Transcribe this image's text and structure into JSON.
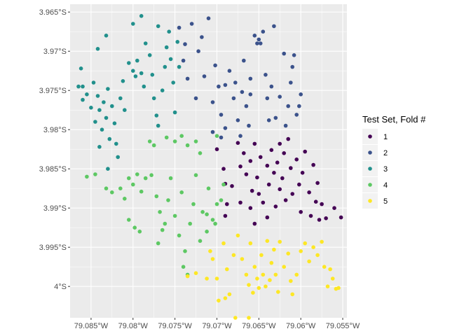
{
  "chart_data": {
    "type": "scatter",
    "title": "",
    "xlabel": "",
    "ylabel": "",
    "xlim": [
      -79.0875,
      -79.0545
    ],
    "ylim": [
      -4.004,
      -3.964
    ],
    "x_ticks": [
      {
        "value": -79.085,
        "label": "79.085°W"
      },
      {
        "value": -79.08,
        "label": "79.08°W"
      },
      {
        "value": -79.075,
        "label": "79.075°W"
      },
      {
        "value": -79.07,
        "label": "79.07°W"
      },
      {
        "value": -79.065,
        "label": "79.065°W"
      },
      {
        "value": -79.06,
        "label": "79.06°W"
      },
      {
        "value": -79.055,
        "label": "79.055°W"
      }
    ],
    "y_ticks": [
      {
        "value": -3.965,
        "label": "3.965°S"
      },
      {
        "value": -3.97,
        "label": "3.97°S"
      },
      {
        "value": -3.975,
        "label": "3.975°S"
      },
      {
        "value": -3.98,
        "label": "3.98°S"
      },
      {
        "value": -3.985,
        "label": "3.985°S"
      },
      {
        "value": -3.99,
        "label": "3.99°S"
      },
      {
        "value": -3.995,
        "label": "3.995°S"
      },
      {
        "value": -4.0,
        "label": "4°S"
      }
    ],
    "grid": true,
    "legend": {
      "title": "Test Set, Fold #",
      "placement": "right"
    },
    "series": [
      {
        "name": "1",
        "color": "#440154",
        "points": [
          [
            -79.07,
            -3.9825
          ],
          [
            -79.0692,
            -3.985
          ],
          [
            -79.069,
            -3.9869
          ],
          [
            -79.0688,
            -3.9895
          ],
          [
            -79.0682,
            -3.9872
          ],
          [
            -79.0675,
            -3.9817
          ],
          [
            -79.0672,
            -3.9847
          ],
          [
            -79.0668,
            -3.983
          ],
          [
            -79.0665,
            -3.9857
          ],
          [
            -79.066,
            -3.984
          ],
          [
            -79.0658,
            -3.9878
          ],
          [
            -79.0655,
            -3.9818
          ],
          [
            -79.0652,
            -3.9861
          ],
          [
            -79.065,
            -3.9882
          ],
          [
            -79.0648,
            -3.9835
          ],
          [
            -79.0645,
            -3.9893
          ],
          [
            -79.064,
            -3.9846
          ],
          [
            -79.0638,
            -3.987
          ],
          [
            -79.0635,
            -3.9826
          ],
          [
            -79.0632,
            -3.9855
          ],
          [
            -79.063,
            -3.9898
          ],
          [
            -79.0628,
            -3.9842
          ],
          [
            -79.0625,
            -3.9876
          ],
          [
            -79.0622,
            -3.9862
          ],
          [
            -79.062,
            -3.983
          ],
          [
            -79.0618,
            -3.989
          ],
          [
            -79.0615,
            -3.9812
          ],
          [
            -79.0612,
            -3.9849
          ],
          [
            -79.061,
            -3.9882
          ],
          [
            -79.0605,
            -3.9838
          ],
          [
            -79.0602,
            -3.987
          ],
          [
            -79.06,
            -3.9905
          ],
          [
            -79.0598,
            -3.9855
          ],
          [
            -79.0595,
            -3.9828
          ],
          [
            -79.059,
            -3.988
          ],
          [
            -79.0588,
            -3.991
          ],
          [
            -79.0585,
            -3.9845
          ],
          [
            -79.0582,
            -3.9892
          ],
          [
            -79.058,
            -3.9868
          ],
          [
            -79.0578,
            -3.9915
          ],
          [
            -79.0575,
            -3.9895
          ],
          [
            -79.057,
            -3.9913
          ],
          [
            -79.056,
            -3.99
          ],
          [
            -79.0552,
            -3.9912
          ],
          [
            -79.066,
            -3.99
          ],
          [
            -79.0672,
            -3.9893
          ],
          [
            -79.069,
            -3.991
          ],
          [
            -79.0655,
            -3.992
          ],
          [
            -79.064,
            -3.9912
          ],
          [
            -79.0625,
            -3.9818
          ]
        ]
      },
      {
        "name": "2",
        "color": "#3B528B",
        "points": [
          [
            -79.0745,
            -3.967
          ],
          [
            -79.0738,
            -3.9691
          ],
          [
            -79.073,
            -3.9665
          ],
          [
            -79.0722,
            -3.97
          ],
          [
            -79.0718,
            -3.9682
          ],
          [
            -79.0715,
            -3.9732
          ],
          [
            -79.071,
            -3.9658
          ],
          [
            -79.0705,
            -3.9765
          ],
          [
            -79.0702,
            -3.9718
          ],
          [
            -79.0698,
            -3.9745
          ],
          [
            -79.0695,
            -3.9781
          ],
          [
            -79.069,
            -3.9798
          ],
          [
            -79.0685,
            -3.9725
          ],
          [
            -79.068,
            -3.976
          ],
          [
            -79.0678,
            -3.974
          ],
          [
            -79.0675,
            -3.9788
          ],
          [
            -79.067,
            -3.9752
          ],
          [
            -79.0668,
            -3.9712
          ],
          [
            -79.0665,
            -3.977
          ],
          [
            -79.0662,
            -3.9795
          ],
          [
            -79.066,
            -3.9735
          ],
          [
            -79.0655,
            -3.968
          ],
          [
            -79.0652,
            -3.969
          ],
          [
            -79.065,
            -3.9685
          ],
          [
            -79.0648,
            -3.969
          ],
          [
            -79.0645,
            -3.9675
          ],
          [
            -79.0642,
            -3.973
          ],
          [
            -79.064,
            -3.976
          ],
          [
            -79.0638,
            -3.9788
          ],
          [
            -79.0635,
            -3.9745
          ],
          [
            -79.0632,
            -3.9668
          ],
          [
            -79.063,
            -3.9785
          ],
          [
            -79.0625,
            -3.9758
          ],
          [
            -79.062,
            -3.9703
          ],
          [
            -79.0618,
            -3.9795
          ],
          [
            -79.0615,
            -3.977
          ],
          [
            -79.0612,
            -3.974
          ],
          [
            -79.061,
            -3.972
          ],
          [
            -79.0608,
            -3.9705
          ],
          [
            -79.0605,
            -3.9781
          ],
          [
            -79.0602,
            -3.977
          ],
          [
            -79.06,
            -3.9755
          ],
          [
            -79.0695,
            -3.981
          ],
          [
            -79.0705,
            -3.9803
          ],
          [
            -79.0725,
            -3.976
          ],
          [
            -79.0735,
            -3.9735
          ],
          [
            -79.074,
            -3.9712
          ],
          [
            -79.069,
            -3.9743
          ],
          [
            -79.0672,
            -3.9808
          ],
          [
            -79.066,
            -3.9755
          ]
        ]
      },
      {
        "name": "3",
        "color": "#21908C",
        "points": [
          [
            -79.0865,
            -3.9745
          ],
          [
            -79.086,
            -3.9762
          ],
          [
            -79.0855,
            -3.9755
          ],
          [
            -79.085,
            -3.9772
          ],
          [
            -79.0847,
            -3.974
          ],
          [
            -79.0845,
            -3.979
          ],
          [
            -79.0842,
            -3.9757
          ],
          [
            -79.084,
            -3.9775
          ],
          [
            -79.0837,
            -3.98
          ],
          [
            -79.0835,
            -3.9765
          ],
          [
            -79.0832,
            -3.9785
          ],
          [
            -79.083,
            -3.9748
          ],
          [
            -79.0828,
            -3.9812
          ],
          [
            -79.0825,
            -3.977
          ],
          [
            -79.0822,
            -3.9792
          ],
          [
            -79.082,
            -3.9818
          ],
          [
            -79.0815,
            -3.976
          ],
          [
            -79.0812,
            -3.9738
          ],
          [
            -79.081,
            -3.9775
          ],
          [
            -79.0805,
            -3.9715
          ],
          [
            -79.08,
            -3.9725
          ],
          [
            -79.0797,
            -3.9732
          ],
          [
            -79.0795,
            -3.9712
          ],
          [
            -79.079,
            -3.9728
          ],
          [
            -79.0787,
            -3.9745
          ],
          [
            -79.0785,
            -3.969
          ],
          [
            -79.078,
            -3.9705
          ],
          [
            -79.0777,
            -3.973
          ],
          [
            -79.0775,
            -3.976
          ],
          [
            -79.0772,
            -3.9782
          ],
          [
            -79.077,
            -3.9795
          ],
          [
            -79.0765,
            -3.975
          ],
          [
            -79.0762,
            -3.972
          ],
          [
            -79.076,
            -3.9695
          ],
          [
            -79.0757,
            -3.9675
          ],
          [
            -79.0755,
            -3.971
          ],
          [
            -79.0752,
            -3.974
          ],
          [
            -79.075,
            -3.9778
          ],
          [
            -79.0747,
            -3.9688
          ],
          [
            -79.0745,
            -3.972
          ],
          [
            -79.0842,
            -3.9697
          ],
          [
            -79.0832,
            -3.968
          ],
          [
            -79.08,
            -3.9665
          ],
          [
            -79.079,
            -3.9655
          ],
          [
            -79.077,
            -3.9668
          ],
          [
            -79.0862,
            -3.9722
          ],
          [
            -79.084,
            -3.9822
          ],
          [
            -79.083,
            -3.985
          ],
          [
            -79.0818,
            -3.9835
          ],
          [
            -79.086,
            -3.9745
          ]
        ]
      },
      {
        "name": "4",
        "color": "#5DC863",
        "points": [
          [
            -79.0855,
            -3.986
          ],
          [
            -79.0845,
            -3.9857
          ],
          [
            -79.0832,
            -3.9875
          ],
          [
            -79.0825,
            -3.988
          ],
          [
            -79.0815,
            -3.9875
          ],
          [
            -79.081,
            -3.9888
          ],
          [
            -79.0805,
            -3.9862
          ],
          [
            -79.08,
            -3.987
          ],
          [
            -79.0795,
            -3.9857
          ],
          [
            -79.079,
            -3.9879
          ],
          [
            -79.0785,
            -3.9862
          ],
          [
            -79.0778,
            -3.9858
          ],
          [
            -79.0772,
            -3.9885
          ],
          [
            -79.0768,
            -3.9905
          ],
          [
            -79.0762,
            -3.992
          ],
          [
            -79.0758,
            -3.989
          ],
          [
            -79.0755,
            -3.9862
          ],
          [
            -79.075,
            -3.991
          ],
          [
            -79.0745,
            -3.9935
          ],
          [
            -79.0742,
            -3.988
          ],
          [
            -79.0738,
            -3.9955
          ],
          [
            -79.0732,
            -3.992
          ],
          [
            -79.0728,
            -3.9895
          ],
          [
            -79.0725,
            -3.9858
          ],
          [
            -79.072,
            -3.983
          ],
          [
            -79.0717,
            -3.9905
          ],
          [
            -79.0712,
            -3.993
          ],
          [
            -79.071,
            -3.9875
          ],
          [
            -79.0705,
            -3.9915
          ],
          [
            -79.07,
            -3.9895
          ],
          [
            -79.078,
            -3.9815
          ],
          [
            -79.0775,
            -3.982
          ],
          [
            -79.076,
            -3.981
          ],
          [
            -79.075,
            -3.9815
          ],
          [
            -79.0742,
            -3.9808
          ],
          [
            -79.0735,
            -3.982
          ],
          [
            -79.0725,
            -3.9815
          ],
          [
            -79.07,
            -3.9808
          ],
          [
            -79.0792,
            -3.993
          ],
          [
            -79.0798,
            -3.9925
          ],
          [
            -79.0805,
            -3.9915
          ],
          [
            -79.077,
            -3.9945
          ],
          [
            -79.0765,
            -3.9928
          ],
          [
            -79.074,
            -3.9975
          ],
          [
            -79.0735,
            -3.9985
          ],
          [
            -79.072,
            -3.9942
          ],
          [
            -79.0712,
            -3.9908
          ],
          [
            -79.0702,
            -3.992
          ],
          [
            -79.0695,
            -3.989
          ],
          [
            -79.0692,
            -3.987
          ]
        ]
      },
      {
        "name": "5",
        "color": "#FDE725",
        "points": [
          [
            -79.0735,
            -3.9987
          ],
          [
            -79.0725,
            -3.9983
          ],
          [
            -79.0712,
            -3.999
          ],
          [
            -79.0708,
            -3.9955
          ],
          [
            -79.0705,
            -3.9965
          ],
          [
            -79.07,
            -3.999
          ],
          [
            -79.0698,
            -4.0018
          ],
          [
            -79.0692,
            -3.9945
          ],
          [
            -79.0688,
            -3.9978
          ],
          [
            -79.0685,
            -4.001
          ],
          [
            -79.068,
            -3.996
          ],
          [
            -79.0678,
            -4.004
          ],
          [
            -79.0675,
            -3.9935
          ],
          [
            -79.067,
            -3.9965
          ],
          [
            -79.0665,
            -3.9985
          ],
          [
            -79.0662,
            -3.9998
          ],
          [
            -79.066,
            -3.9945
          ],
          [
            -79.0657,
            -4.0008
          ],
          [
            -79.0655,
            -3.9975
          ],
          [
            -79.0652,
            -3.999
          ],
          [
            -79.065,
            -4.0002
          ],
          [
            -79.0647,
            -3.996
          ],
          [
            -79.0645,
            -3.9985
          ],
          [
            -79.0642,
            -4.0
          ],
          [
            -79.064,
            -3.9942
          ],
          [
            -79.0637,
            -3.9992
          ],
          [
            -79.0635,
            -3.997
          ],
          [
            -79.0632,
            -3.9953
          ],
          [
            -79.063,
            -3.9985
          ],
          [
            -79.0627,
            -4.0007
          ],
          [
            -79.0625,
            -3.9943
          ],
          [
            -79.062,
            -3.9975
          ],
          [
            -79.0615,
            -3.9958
          ],
          [
            -79.0612,
            -3.9993
          ],
          [
            -79.061,
            -4.001
          ],
          [
            -79.0605,
            -3.9985
          ],
          [
            -79.06,
            -3.9955
          ],
          [
            -79.0595,
            -3.9945
          ],
          [
            -79.059,
            -3.9968
          ],
          [
            -79.0585,
            -3.995
          ],
          [
            -79.058,
            -3.996
          ],
          [
            -79.0575,
            -3.9943
          ],
          [
            -79.0572,
            -3.9975
          ],
          [
            -79.0568,
            -4.0
          ],
          [
            -79.0565,
            -3.9978
          ],
          [
            -79.0562,
            -3.999
          ],
          [
            -79.0558,
            -4.0003
          ],
          [
            -79.0555,
            -4.0002
          ],
          [
            -79.0662,
            -4.004
          ],
          [
            -79.069,
            -4.0015
          ]
        ]
      }
    ]
  }
}
